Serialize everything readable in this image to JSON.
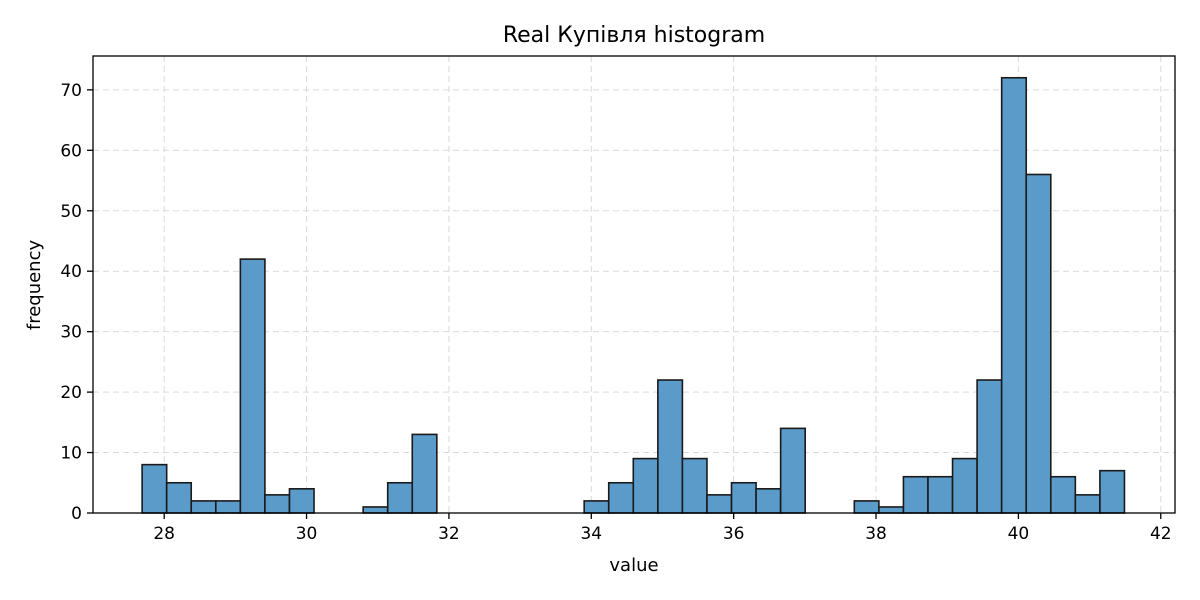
{
  "chart_data": {
    "type": "bar",
    "title": "Real Купівля histogram",
    "xlabel": "value",
    "ylabel": "frequency",
    "xlim": [
      27,
      42.2
    ],
    "ylim": [
      0,
      75.6
    ],
    "xticks": [
      28,
      30,
      32,
      34,
      36,
      38,
      40,
      42
    ],
    "yticks": [
      0,
      10,
      20,
      30,
      40,
      50,
      60,
      70
    ],
    "grid": true,
    "bin_width": 0.345,
    "bins": [
      {
        "x0": 27.69,
        "count": 8
      },
      {
        "x0": 28.035,
        "count": 5
      },
      {
        "x0": 28.38,
        "count": 2
      },
      {
        "x0": 28.725,
        "count": 2
      },
      {
        "x0": 29.07,
        "count": 42
      },
      {
        "x0": 29.415,
        "count": 3
      },
      {
        "x0": 29.76,
        "count": 4
      },
      {
        "x0": 30.105,
        "count": 0
      },
      {
        "x0": 30.45,
        "count": 0
      },
      {
        "x0": 30.795,
        "count": 1
      },
      {
        "x0": 31.14,
        "count": 5
      },
      {
        "x0": 31.485,
        "count": 13
      },
      {
        "x0": 31.83,
        "count": 0
      },
      {
        "x0": 32.175,
        "count": 0
      },
      {
        "x0": 32.52,
        "count": 0
      },
      {
        "x0": 32.865,
        "count": 0
      },
      {
        "x0": 33.21,
        "count": 0
      },
      {
        "x0": 33.555,
        "count": 0
      },
      {
        "x0": 33.9,
        "count": 2
      },
      {
        "x0": 34.245,
        "count": 5
      },
      {
        "x0": 34.59,
        "count": 9
      },
      {
        "x0": 34.935,
        "count": 22
      },
      {
        "x0": 35.28,
        "count": 9
      },
      {
        "x0": 35.625,
        "count": 3
      },
      {
        "x0": 35.97,
        "count": 5
      },
      {
        "x0": 36.315,
        "count": 4
      },
      {
        "x0": 36.66,
        "count": 14
      },
      {
        "x0": 37.005,
        "count": 0
      },
      {
        "x0": 37.35,
        "count": 0
      },
      {
        "x0": 37.695,
        "count": 2
      },
      {
        "x0": 38.04,
        "count": 1
      },
      {
        "x0": 38.385,
        "count": 6
      },
      {
        "x0": 38.73,
        "count": 6
      },
      {
        "x0": 39.075,
        "count": 9
      },
      {
        "x0": 39.42,
        "count": 22
      },
      {
        "x0": 39.765,
        "count": 72
      },
      {
        "x0": 40.11,
        "count": 56
      },
      {
        "x0": 40.455,
        "count": 6
      },
      {
        "x0": 40.8,
        "count": 3
      },
      {
        "x0": 41.145,
        "count": 7
      }
    ],
    "colors": {
      "bar_fill": "#5b9bc9",
      "bar_edge": "#1a1a1a",
      "grid": "#d9d9d9"
    }
  }
}
